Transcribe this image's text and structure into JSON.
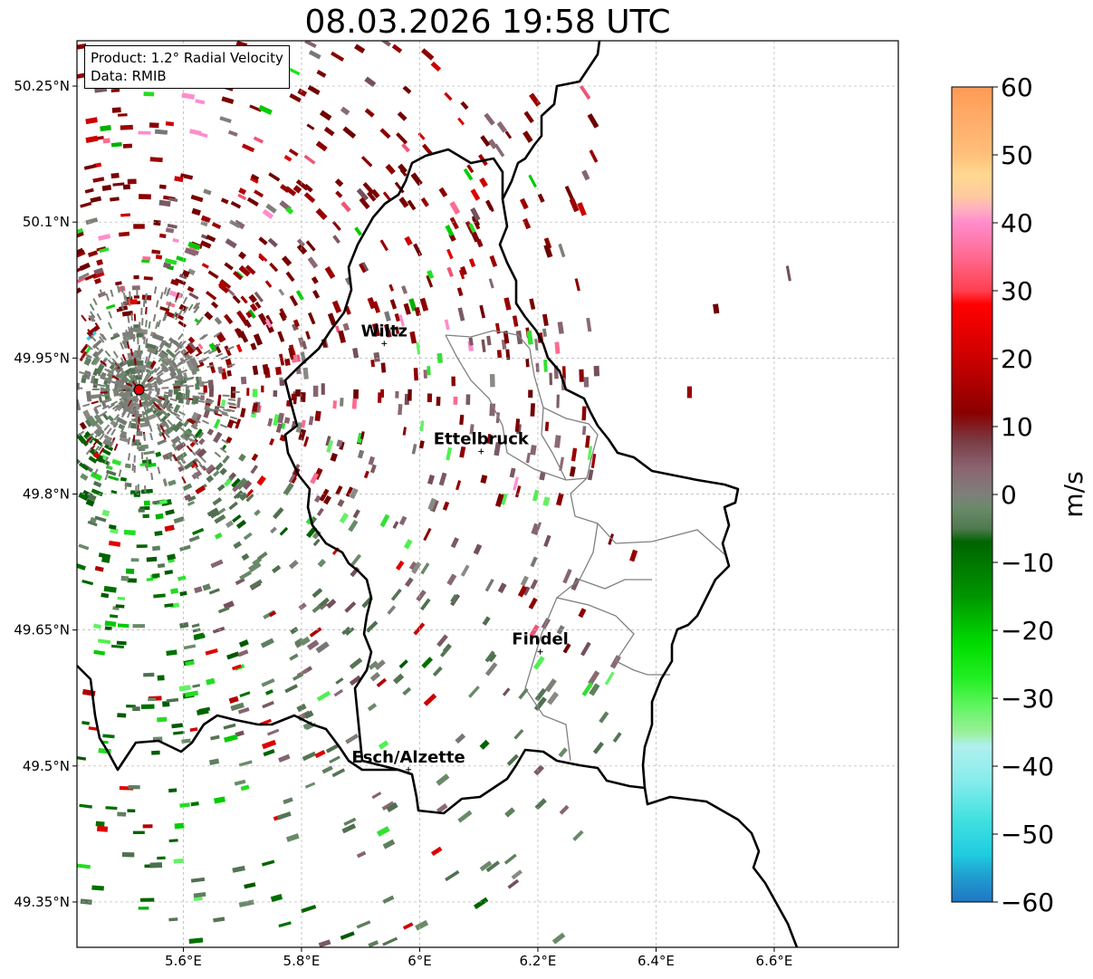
{
  "title": "08.03.2026 19:58 UTC",
  "info": {
    "product": "Product: 1.2° Radial Velocity",
    "data_source": "Data: RMIB"
  },
  "map": {
    "lon_range": [
      5.42,
      6.81
    ],
    "lat_range": [
      49.3,
      50.3
    ],
    "lon_ticks": [
      {
        "value": 5.6,
        "label": "5.6°E"
      },
      {
        "value": 5.8,
        "label": "5.8°E"
      },
      {
        "value": 6.0,
        "label": "6°E"
      },
      {
        "value": 6.2,
        "label": "6.2°E"
      },
      {
        "value": 6.4,
        "label": "6.4°E"
      },
      {
        "value": 6.6,
        "label": "6.6°E"
      }
    ],
    "lat_ticks": [
      {
        "value": 50.25,
        "label": "50.25°N"
      },
      {
        "value": 50.1,
        "label": "50.1°N"
      },
      {
        "value": 49.95,
        "label": "49.95°N"
      },
      {
        "value": 49.8,
        "label": "49.8°N"
      },
      {
        "value": 49.65,
        "label": "49.65°N"
      },
      {
        "value": 49.5,
        "label": "49.5°N"
      },
      {
        "value": 49.35,
        "label": "49.35°N"
      }
    ],
    "radar_site": {
      "lon": 5.525,
      "lat": 49.915
    },
    "cities": [
      {
        "name": "Wiltz",
        "lon": 5.94,
        "lat": 49.966
      },
      {
        "name": "Ettelbruck",
        "lon": 6.104,
        "lat": 49.847
      },
      {
        "name": "Findel",
        "lon": 6.204,
        "lat": 49.626
      },
      {
        "name": "Esch/Alzette",
        "lon": 5.981,
        "lat": 49.496
      }
    ]
  },
  "colorbar": {
    "label": "m/s",
    "min": -60,
    "max": 60,
    "ticks": [
      {
        "value": 60,
        "label": "60"
      },
      {
        "value": 50,
        "label": "50"
      },
      {
        "value": 40,
        "label": "40"
      },
      {
        "value": 30,
        "label": "30"
      },
      {
        "value": 20,
        "label": "20"
      },
      {
        "value": 10,
        "label": "10"
      },
      {
        "value": 0,
        "label": "0"
      },
      {
        "value": -10,
        "label": "−10"
      },
      {
        "value": -20,
        "label": "−20"
      },
      {
        "value": -30,
        "label": "−30"
      },
      {
        "value": -40,
        "label": "−40"
      },
      {
        "value": -50,
        "label": "−50"
      },
      {
        "value": -60,
        "label": "−60"
      }
    ],
    "stops": [
      {
        "value": 60,
        "color": "#ff9a55"
      },
      {
        "value": 55,
        "color": "#ffad6a"
      },
      {
        "value": 50,
        "color": "#ffc07a"
      },
      {
        "value": 47,
        "color": "#ffd890"
      },
      {
        "value": 44,
        "color": "#ffcaa0"
      },
      {
        "value": 42,
        "color": "#ffb0c0"
      },
      {
        "value": 40,
        "color": "#ff8ccc"
      },
      {
        "value": 35,
        "color": "#ff6a90"
      },
      {
        "value": 30,
        "color": "#ff4050"
      },
      {
        "value": 28,
        "color": "#ff0000"
      },
      {
        "value": 20,
        "color": "#cc0000"
      },
      {
        "value": 12,
        "color": "#8a0000"
      },
      {
        "value": 8,
        "color": "#7a3a42"
      },
      {
        "value": 4,
        "color": "#8a6470"
      },
      {
        "value": 0,
        "color": "#7f7f7a"
      },
      {
        "value": -2,
        "color": "#6a8a6a"
      },
      {
        "value": -5,
        "color": "#507a50"
      },
      {
        "value": -7,
        "color": "#006400"
      },
      {
        "value": -15,
        "color": "#009600"
      },
      {
        "value": -22,
        "color": "#00dc00"
      },
      {
        "value": -27,
        "color": "#22ee22"
      },
      {
        "value": -31,
        "color": "#5ef55e"
      },
      {
        "value": -35,
        "color": "#99f099"
      },
      {
        "value": -37,
        "color": "#b0f0ee"
      },
      {
        "value": -42,
        "color": "#88ecec"
      },
      {
        "value": -48,
        "color": "#40e0e0"
      },
      {
        "value": -53,
        "color": "#20cce0"
      },
      {
        "value": -56,
        "color": "#20a0d0"
      },
      {
        "value": -60,
        "color": "#1f77c4"
      }
    ]
  }
}
